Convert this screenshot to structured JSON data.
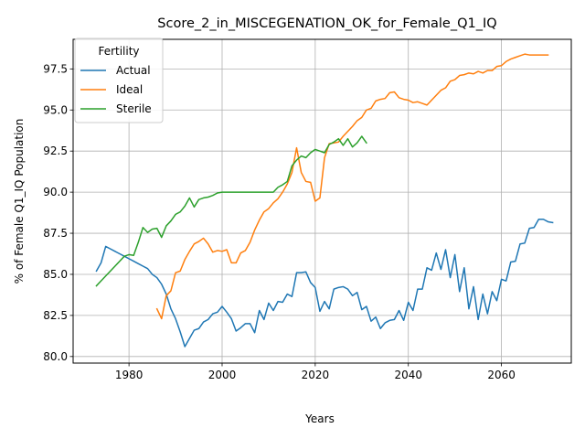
{
  "chart_data": {
    "type": "line",
    "title": "Score_2_in_MISCEGENATION_OK_for_Female_Q1_IQ",
    "xlabel": "Years",
    "ylabel": "% of Female Q1_IQ Population",
    "xlim": [
      1968,
      2075
    ],
    "ylim": [
      79.6,
      99.3
    ],
    "xticks": [
      1980,
      2000,
      2020,
      2040,
      2060
    ],
    "yticks": [
      80.0,
      82.5,
      85.0,
      87.5,
      90.0,
      92.5,
      95.0,
      97.5
    ],
    "grid": true,
    "legend": {
      "title": "Fertility",
      "placement": "top-left"
    },
    "series": [
      {
        "name": "Actual",
        "color": "#1f77b4",
        "points": [
          [
            1973,
            85.2
          ],
          [
            1974,
            85.7
          ],
          [
            1975,
            86.7
          ],
          [
            1976,
            86.55
          ],
          [
            1977,
            86.4
          ],
          [
            1978,
            86.25
          ],
          [
            1979,
            86.1
          ],
          [
            1980,
            85.95
          ],
          [
            1981,
            85.8
          ],
          [
            1982,
            85.65
          ],
          [
            1983,
            85.5
          ],
          [
            1984,
            85.35
          ],
          [
            1985,
            85.0
          ],
          [
            1986,
            84.8
          ],
          [
            1987,
            84.4
          ],
          [
            1988,
            83.8
          ],
          [
            1989,
            82.9
          ],
          [
            1990,
            82.3
          ],
          [
            1991,
            81.5
          ],
          [
            1992,
            80.6
          ],
          [
            1993,
            81.1
          ],
          [
            1994,
            81.6
          ],
          [
            1995,
            81.7
          ],
          [
            1996,
            82.1
          ],
          [
            1997,
            82.25
          ],
          [
            1998,
            82.6
          ],
          [
            1999,
            82.7
          ],
          [
            2000,
            83.05
          ],
          [
            2001,
            82.7
          ],
          [
            2002,
            82.3
          ],
          [
            2003,
            81.55
          ],
          [
            2004,
            81.75
          ],
          [
            2005,
            82.0
          ],
          [
            2006,
            82.0
          ],
          [
            2007,
            81.45
          ],
          [
            2008,
            82.8
          ],
          [
            2009,
            82.25
          ],
          [
            2010,
            83.25
          ],
          [
            2011,
            82.8
          ],
          [
            2012,
            83.35
          ],
          [
            2013,
            83.3
          ],
          [
            2014,
            83.8
          ],
          [
            2015,
            83.65
          ],
          [
            2016,
            85.1
          ],
          [
            2017,
            85.1
          ],
          [
            2018,
            85.15
          ],
          [
            2019,
            84.5
          ],
          [
            2020,
            84.2
          ],
          [
            2021,
            82.75
          ],
          [
            2022,
            83.35
          ],
          [
            2023,
            82.9
          ],
          [
            2024,
            84.1
          ],
          [
            2025,
            84.2
          ],
          [
            2026,
            84.25
          ],
          [
            2027,
            84.1
          ],
          [
            2028,
            83.7
          ],
          [
            2029,
            83.9
          ],
          [
            2030,
            82.85
          ],
          [
            2031,
            83.05
          ],
          [
            2032,
            82.15
          ],
          [
            2033,
            82.4
          ],
          [
            2034,
            81.7
          ],
          [
            2035,
            82.05
          ],
          [
            2036,
            82.2
          ],
          [
            2037,
            82.25
          ],
          [
            2038,
            82.8
          ],
          [
            2039,
            82.2
          ],
          [
            2040,
            83.3
          ],
          [
            2041,
            82.8
          ],
          [
            2042,
            84.1
          ],
          [
            2043,
            84.1
          ],
          [
            2044,
            85.4
          ],
          [
            2045,
            85.25
          ],
          [
            2046,
            86.3
          ],
          [
            2047,
            85.3
          ],
          [
            2048,
            86.5
          ],
          [
            2049,
            84.8
          ],
          [
            2050,
            86.2
          ],
          [
            2051,
            83.95
          ],
          [
            2052,
            85.4
          ],
          [
            2053,
            82.9
          ],
          [
            2054,
            84.25
          ],
          [
            2055,
            82.25
          ],
          [
            2056,
            83.8
          ],
          [
            2057,
            82.6
          ],
          [
            2058,
            83.95
          ],
          [
            2059,
            83.4
          ],
          [
            2060,
            84.7
          ],
          [
            2061,
            84.6
          ],
          [
            2062,
            85.75
          ],
          [
            2063,
            85.8
          ],
          [
            2064,
            86.85
          ],
          [
            2065,
            86.9
          ],
          [
            2066,
            87.8
          ],
          [
            2067,
            87.85
          ],
          [
            2068,
            88.35
          ],
          [
            2069,
            88.35
          ],
          [
            2070,
            88.2
          ],
          [
            2071,
            88.15
          ]
        ]
      },
      {
        "name": "Ideal",
        "color": "#ff7f0e",
        "points": [
          [
            1986,
            82.9
          ],
          [
            1987,
            82.3
          ],
          [
            1988,
            83.7
          ],
          [
            1989,
            84.0
          ],
          [
            1990,
            85.1
          ],
          [
            1991,
            85.2
          ],
          [
            1992,
            85.9
          ],
          [
            1993,
            86.4
          ],
          [
            1994,
            86.85
          ],
          [
            1995,
            87.0
          ],
          [
            1996,
            87.2
          ],
          [
            1997,
            86.85
          ],
          [
            1998,
            86.35
          ],
          [
            1999,
            86.45
          ],
          [
            2000,
            86.4
          ],
          [
            2001,
            86.5
          ],
          [
            2002,
            85.7
          ],
          [
            2003,
            85.7
          ],
          [
            2004,
            86.3
          ],
          [
            2005,
            86.45
          ],
          [
            2006,
            86.95
          ],
          [
            2007,
            87.7
          ],
          [
            2008,
            88.3
          ],
          [
            2009,
            88.8
          ],
          [
            2010,
            89.0
          ],
          [
            2011,
            89.35
          ],
          [
            2012,
            89.6
          ],
          [
            2013,
            90.0
          ],
          [
            2014,
            90.5
          ],
          [
            2015,
            91.2
          ],
          [
            2016,
            92.7
          ],
          [
            2017,
            91.2
          ],
          [
            2018,
            90.65
          ],
          [
            2019,
            90.6
          ],
          [
            2020,
            89.45
          ],
          [
            2021,
            89.65
          ],
          [
            2022,
            92.1
          ],
          [
            2023,
            92.95
          ],
          [
            2024,
            93.0
          ],
          [
            2025,
            93.05
          ],
          [
            2026,
            93.4
          ],
          [
            2027,
            93.7
          ],
          [
            2028,
            94.0
          ],
          [
            2029,
            94.35
          ],
          [
            2030,
            94.55
          ],
          [
            2031,
            95.0
          ],
          [
            2032,
            95.1
          ],
          [
            2033,
            95.55
          ],
          [
            2034,
            95.65
          ],
          [
            2035,
            95.7
          ],
          [
            2036,
            96.05
          ],
          [
            2037,
            96.1
          ],
          [
            2038,
            95.75
          ],
          [
            2039,
            95.65
          ],
          [
            2040,
            95.6
          ],
          [
            2041,
            95.45
          ],
          [
            2042,
            95.5
          ],
          [
            2043,
            95.4
          ],
          [
            2044,
            95.3
          ],
          [
            2045,
            95.6
          ],
          [
            2046,
            95.9
          ],
          [
            2047,
            96.2
          ],
          [
            2048,
            96.35
          ],
          [
            2049,
            96.75
          ],
          [
            2050,
            96.85
          ],
          [
            2051,
            97.1
          ],
          [
            2052,
            97.15
          ],
          [
            2053,
            97.25
          ],
          [
            2054,
            97.2
          ],
          [
            2055,
            97.35
          ],
          [
            2056,
            97.25
          ],
          [
            2057,
            97.4
          ],
          [
            2058,
            97.4
          ],
          [
            2059,
            97.65
          ],
          [
            2060,
            97.7
          ],
          [
            2061,
            97.95
          ],
          [
            2062,
            98.1
          ],
          [
            2063,
            98.2
          ],
          [
            2064,
            98.3
          ],
          [
            2065,
            98.4
          ],
          [
            2066,
            98.35
          ],
          [
            2067,
            98.35
          ],
          [
            2068,
            98.35
          ],
          [
            2069,
            98.35
          ],
          [
            2070,
            98.35
          ]
        ]
      },
      {
        "name": "Sterile",
        "color": "#2ca02c",
        "points": [
          [
            1973,
            84.3
          ],
          [
            1974,
            84.6
          ],
          [
            1975,
            84.9
          ],
          [
            1976,
            85.2
          ],
          [
            1977,
            85.5
          ],
          [
            1978,
            85.8
          ],
          [
            1979,
            86.1
          ],
          [
            1980,
            86.2
          ],
          [
            1981,
            86.15
          ],
          [
            1982,
            86.95
          ],
          [
            1983,
            87.85
          ],
          [
            1984,
            87.55
          ],
          [
            1985,
            87.75
          ],
          [
            1986,
            87.8
          ],
          [
            1987,
            87.25
          ],
          [
            1988,
            87.95
          ],
          [
            1989,
            88.25
          ],
          [
            1990,
            88.65
          ],
          [
            1991,
            88.8
          ],
          [
            1992,
            89.15
          ],
          [
            1993,
            89.65
          ],
          [
            1994,
            89.1
          ],
          [
            1995,
            89.55
          ],
          [
            1996,
            89.65
          ],
          [
            1997,
            89.7
          ],
          [
            1998,
            89.8
          ],
          [
            1999,
            89.95
          ],
          [
            2000,
            90.0
          ],
          [
            2005,
            90.0
          ],
          [
            2010,
            90.0
          ],
          [
            2011,
            90.0
          ],
          [
            2012,
            90.3
          ],
          [
            2013,
            90.45
          ],
          [
            2014,
            90.65
          ],
          [
            2015,
            91.6
          ],
          [
            2016,
            91.95
          ],
          [
            2017,
            92.2
          ],
          [
            2018,
            92.1
          ],
          [
            2019,
            92.4
          ],
          [
            2020,
            92.6
          ],
          [
            2021,
            92.5
          ],
          [
            2022,
            92.4
          ],
          [
            2023,
            92.9
          ],
          [
            2024,
            93.05
          ],
          [
            2025,
            93.25
          ],
          [
            2026,
            92.85
          ],
          [
            2027,
            93.25
          ],
          [
            2028,
            92.75
          ],
          [
            2029,
            93.0
          ],
          [
            2030,
            93.4
          ],
          [
            2031,
            93.0
          ]
        ]
      }
    ]
  }
}
